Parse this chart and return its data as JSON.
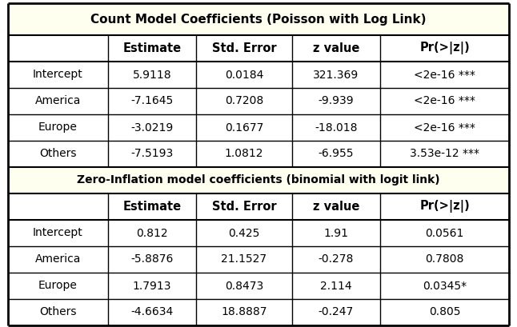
{
  "title1": "Count Model Coefficients (Poisson with Log Link)",
  "title2": "Zero-Inflation model coefficients (binomial with logit link)",
  "col_headers": [
    "",
    "Estimate",
    "Std. Error",
    "z value",
    "Pr(>|z|)"
  ],
  "count_rows": [
    [
      "Intercept",
      "5.9118",
      "0.0184",
      "321.369",
      "<2e-16 ***"
    ],
    [
      "America",
      "-7.1645",
      "0.7208",
      "-9.939",
      "<2e-16 ***"
    ],
    [
      "Europe",
      "-3.0219",
      "0.1677",
      "-18.018",
      "<2e-16 ***"
    ],
    [
      "Others",
      "-7.5193",
      "1.0812",
      "-6.955",
      "3.53e-12 ***"
    ]
  ],
  "zero_rows": [
    [
      "Intercept",
      "0.812",
      "0.425",
      "1.91",
      "0.0561"
    ],
    [
      "America",
      "-5.8876",
      "21.1527",
      "-0.278",
      "0.7808"
    ],
    [
      "Europe",
      "1.7913",
      "0.8473",
      "2.114",
      "0.0345*"
    ],
    [
      "Others",
      "-4.6634",
      "18.8887",
      "-0.247",
      "0.805"
    ]
  ],
  "header_bg": "#FFFFF0",
  "row_bg": "#FFFFFF",
  "border_color": "#000000",
  "text_color": "#000000",
  "figsize": [
    6.46,
    4.09
  ],
  "dpi": 100
}
